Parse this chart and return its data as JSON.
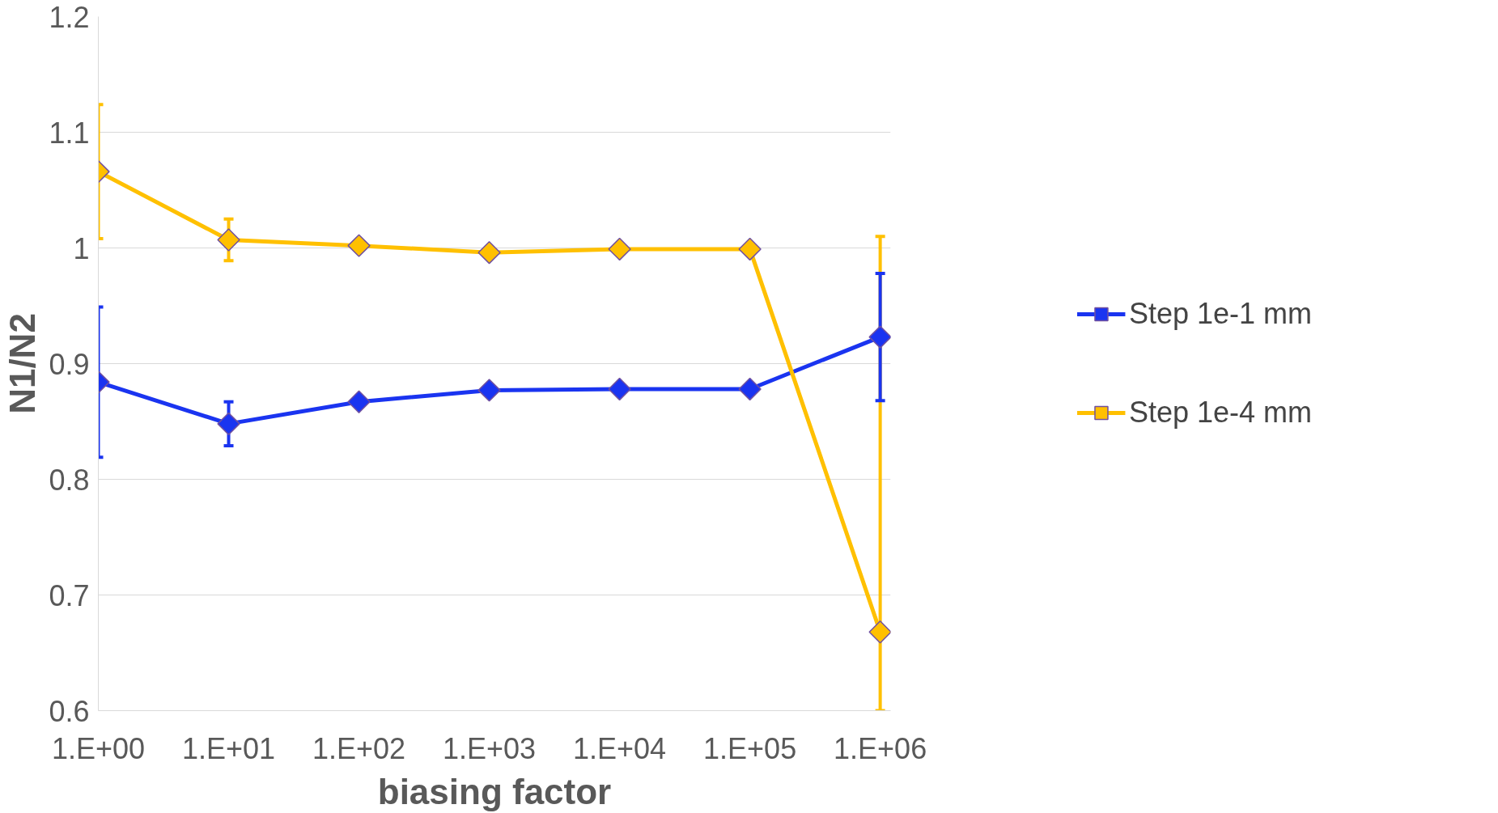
{
  "chart_data": {
    "type": "line",
    "xlabel": "biasing factor",
    "ylabel": "N1/N2",
    "categories": [
      "1.E+00",
      "1.E+01",
      "1.E+02",
      "1.E+03",
      "1.E+04",
      "1.E+05",
      "1.E+06"
    ],
    "series": [
      {
        "name": "Step 1e-1 mm",
        "color": "#1a34f0",
        "values": [
          0.884,
          0.848,
          0.867,
          0.877,
          0.878,
          0.878,
          0.923
        ],
        "errors": [
          0.065,
          0.019,
          0.004,
          null,
          null,
          null,
          0.055
        ]
      },
      {
        "name": "Step 1e-4 mm",
        "color": "#ffc000",
        "values": [
          1.066,
          1.007,
          1.002,
          0.996,
          0.999,
          0.999,
          0.668
        ],
        "errors": [
          0.058,
          0.018,
          null,
          null,
          null,
          null,
          [
            0.6,
            1.01
          ]
        ]
      }
    ],
    "ylim": [
      0.6,
      1.2
    ],
    "yticks": [
      0.6,
      0.7,
      0.8,
      0.9,
      1,
      1.1,
      1.2
    ],
    "grid": "y",
    "legend": "right",
    "marker": "diamond",
    "line_style": "solid"
  }
}
